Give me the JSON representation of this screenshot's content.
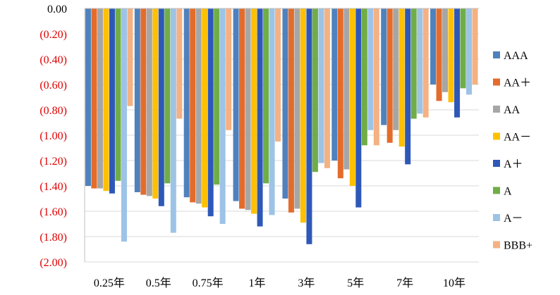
{
  "chart_data": {
    "type": "bar",
    "title": "",
    "xlabel": "",
    "ylabel": "",
    "ylim": [
      -2.0,
      0.0
    ],
    "yticks": [
      0,
      -0.2,
      -0.4,
      -0.6,
      -0.8,
      -1.0,
      -1.2,
      -1.4,
      -1.6,
      -1.8,
      -2.0
    ],
    "ytick_labels": [
      "0.00",
      "(0.20)",
      "(0.40)",
      "(0.60)",
      "(0.80)",
      "(1.00)",
      "(1.20)",
      "(1.40)",
      "(1.60)",
      "(1.80)",
      "(2.00)"
    ],
    "ytick_colors": {
      "zero": "#000000",
      "negative": "#e00000"
    },
    "grid": true,
    "legend_position": "right",
    "categories": [
      "0.25年",
      "0.5年",
      "0.75年",
      "1年",
      "3年",
      "5年",
      "7年",
      "10年"
    ],
    "series": [
      {
        "name": "AAA",
        "color": "#4f81bd",
        "values": [
          -1.4,
          -1.45,
          -1.49,
          -1.52,
          -1.5,
          -1.2,
          -0.92,
          -0.6
        ]
      },
      {
        "name": "AA＋",
        "color": "#e36c2c",
        "values": [
          -1.42,
          -1.47,
          -1.53,
          -1.58,
          -1.61,
          -1.34,
          -1.06,
          -0.73
        ]
      },
      {
        "name": "AA",
        "color": "#a6a6a6",
        "values": [
          -1.42,
          -1.48,
          -1.54,
          -1.59,
          -1.58,
          -1.27,
          -0.96,
          -0.66
        ]
      },
      {
        "name": "AA－",
        "color": "#ffc000",
        "values": [
          -1.44,
          -1.5,
          -1.57,
          -1.62,
          -1.69,
          -1.4,
          -1.09,
          -0.74
        ]
      },
      {
        "name": "A＋",
        "color": "#2e58b8",
        "values": [
          -1.46,
          -1.56,
          -1.64,
          -1.72,
          -1.86,
          -1.57,
          -1.23,
          -0.86
        ]
      },
      {
        "name": "A",
        "color": "#70ad47",
        "values": [
          -1.36,
          -1.38,
          -1.39,
          -1.38,
          -1.29,
          -1.08,
          -0.87,
          -0.63
        ]
      },
      {
        "name": "A－",
        "color": "#9dc3e6",
        "values": [
          -1.84,
          -1.77,
          -1.7,
          -1.63,
          -1.22,
          -0.96,
          -0.83,
          -0.68
        ]
      },
      {
        "name": "BBB+",
        "color": "#f4b183",
        "values": [
          -0.77,
          -0.87,
          -0.96,
          -1.05,
          -1.26,
          -1.08,
          -0.86,
          -0.6
        ]
      }
    ]
  }
}
